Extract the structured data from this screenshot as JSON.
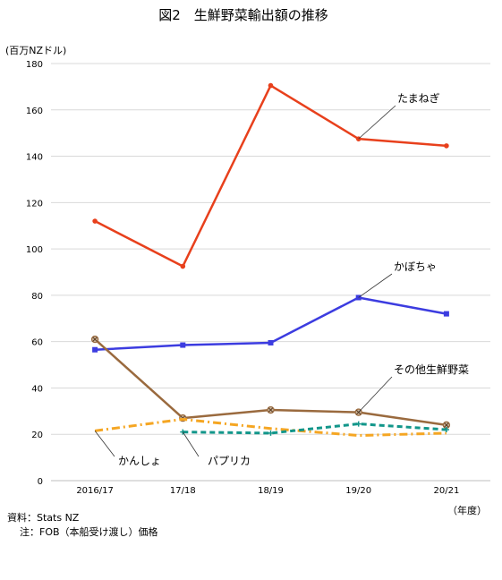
{
  "chart_data": {
    "type": "line",
    "title": "図2　生鮮野菜輸出額の推移",
    "ylabel": "(百万NZドル)",
    "xlabel": "（年度）",
    "categories": [
      "2016/17",
      "17/18",
      "18/19",
      "19/20",
      "20/21"
    ],
    "ylim": [
      0,
      180
    ],
    "yticks": [
      0,
      20,
      40,
      60,
      80,
      100,
      120,
      140,
      160,
      180
    ],
    "grid": true,
    "legend": "inline labels",
    "series": [
      {
        "name": "たまねぎ",
        "values": [
          112,
          92.5,
          170.5,
          147.5,
          144.5
        ],
        "color": "#e8401c",
        "style": "solid",
        "marker": "circle"
      },
      {
        "name": "かぼちゃ",
        "values": [
          56.5,
          58.5,
          59.5,
          79,
          72
        ],
        "color": "#3c3ce0",
        "style": "solid",
        "marker": "square"
      },
      {
        "name": "その他生鮮野菜",
        "values": [
          61,
          27,
          30.5,
          29.5,
          24
        ],
        "color": "#9a6a3e",
        "style": "solid",
        "marker": "xcircle"
      },
      {
        "name": "かんしょ",
        "values": [
          21.5,
          26.5,
          22.5,
          19.5,
          20.5
        ],
        "color": "#f5a623",
        "style": "dashdot",
        "marker": "none"
      },
      {
        "name": "パプリカ",
        "values": [
          null,
          21,
          20.5,
          24.5,
          22
        ],
        "color": "#12968a",
        "style": "dashed",
        "marker": "plus"
      }
    ]
  },
  "notes": {
    "source": "資料：Stats NZ",
    "note": "注：FOB（本船受け渡し）価格"
  }
}
